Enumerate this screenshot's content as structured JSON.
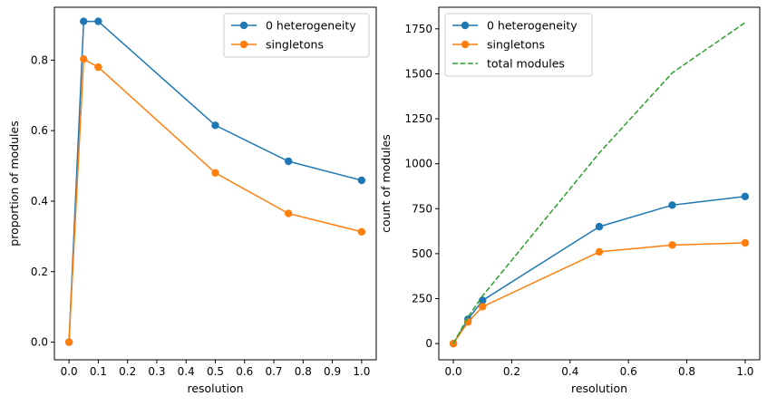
{
  "chart_data": [
    {
      "type": "line",
      "title": "",
      "xlabel": "resolution",
      "ylabel": "proportion of modules",
      "xlim": [
        -0.05,
        1.05
      ],
      "ylim": [
        -0.05,
        0.95
      ],
      "xticks": [
        0.0,
        0.1,
        0.2,
        0.3,
        0.4,
        0.5,
        0.6,
        0.7,
        0.8,
        0.9,
        1.0
      ],
      "xtick_labels": [
        "0.0",
        "0.1",
        "0.2",
        "0.3",
        "0.4",
        "0.5",
        "0.6",
        "0.7",
        "0.8",
        "0.9",
        "1.0"
      ],
      "yticks": [
        0.0,
        0.2,
        0.4,
        0.6,
        0.8
      ],
      "ytick_labels": [
        "0.0",
        "0.2",
        "0.4",
        "0.6",
        "0.8"
      ],
      "legend_position": "top-right",
      "series": [
        {
          "name": "0 heterogeneity",
          "color": "#1f77b4",
          "style": "solid-marker",
          "x": [
            0.0,
            0.05,
            0.1,
            0.5,
            0.75,
            1.0
          ],
          "y": [
            0.0,
            0.91,
            0.91,
            0.615,
            0.513,
            0.459
          ]
        },
        {
          "name": "singletons",
          "color": "#ff7f0e",
          "style": "solid-marker",
          "x": [
            0.0,
            0.05,
            0.1,
            0.5,
            0.75,
            1.0
          ],
          "y": [
            0.0,
            0.803,
            0.78,
            0.48,
            0.365,
            0.313
          ]
        }
      ]
    },
    {
      "type": "line",
      "title": "",
      "xlabel": "resolution",
      "ylabel": "count of modules",
      "xlim": [
        -0.05,
        1.05
      ],
      "ylim": [
        -90,
        1870
      ],
      "xticks": [
        0.0,
        0.2,
        0.4,
        0.6,
        0.8,
        1.0
      ],
      "xtick_labels": [
        "0.0",
        "0.2",
        "0.4",
        "0.6",
        "0.8",
        "1.0"
      ],
      "yticks": [
        0,
        250,
        500,
        750,
        1000,
        1250,
        1500,
        1750
      ],
      "ytick_labels": [
        "0",
        "250",
        "500",
        "750",
        "1000",
        "1250",
        "1500",
        "1750"
      ],
      "legend_position": "top-left",
      "series": [
        {
          "name": "0 heterogeneity",
          "color": "#1f77b4",
          "style": "solid-marker",
          "x": [
            0.0,
            0.05,
            0.1,
            0.5,
            0.75,
            1.0
          ],
          "y": [
            0,
            135,
            240,
            650,
            770,
            818
          ]
        },
        {
          "name": "singletons",
          "color": "#ff7f0e",
          "style": "solid-marker",
          "x": [
            0.0,
            0.05,
            0.1,
            0.5,
            0.75,
            1.0
          ],
          "y": [
            0,
            120,
            205,
            510,
            548,
            560
          ]
        },
        {
          "name": "total modules",
          "color": "#2ca02c",
          "style": "dashed",
          "x": [
            0.0,
            0.05,
            0.1,
            0.5,
            0.75,
            1.0
          ],
          "y": [
            0,
            148,
            265,
            1060,
            1505,
            1785
          ]
        }
      ]
    }
  ]
}
